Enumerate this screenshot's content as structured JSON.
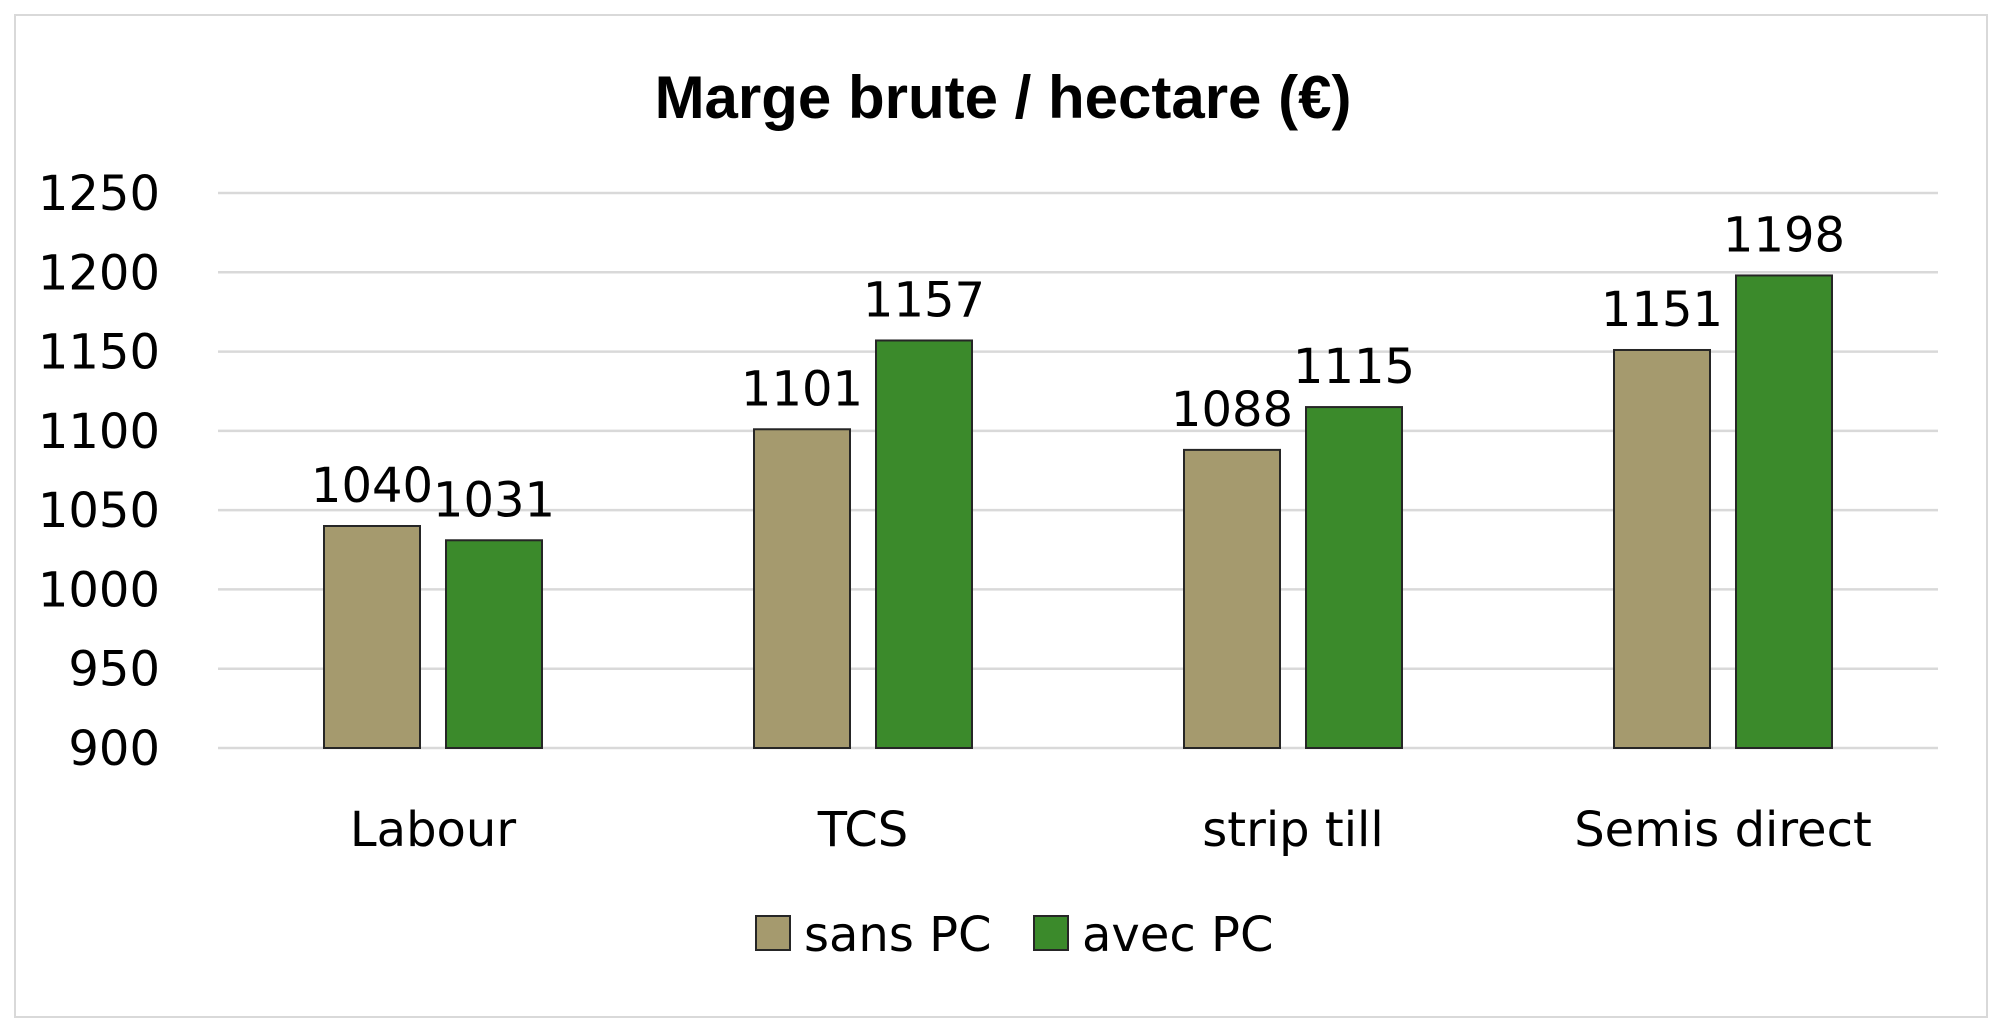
{
  "chart_data": {
    "type": "bar",
    "title": "Marge brute / hectare (€)",
    "categories": [
      "Labour",
      "TCS",
      "strip till",
      "Semis direct"
    ],
    "series": [
      {
        "name": "sans PC",
        "color": "#a59a6e",
        "values": [
          1040,
          1101,
          1088,
          1151
        ]
      },
      {
        "name": "avec PC",
        "color": "#3b8a2b",
        "values": [
          1031,
          1157,
          1115,
          1198
        ]
      }
    ],
    "ylim": [
      900,
      1250
    ],
    "yticks": [
      900,
      950,
      1000,
      1050,
      1100,
      1150,
      1200,
      1250
    ],
    "xlabel": "",
    "ylabel": "",
    "grid": true,
    "legend_position": "bottom"
  }
}
